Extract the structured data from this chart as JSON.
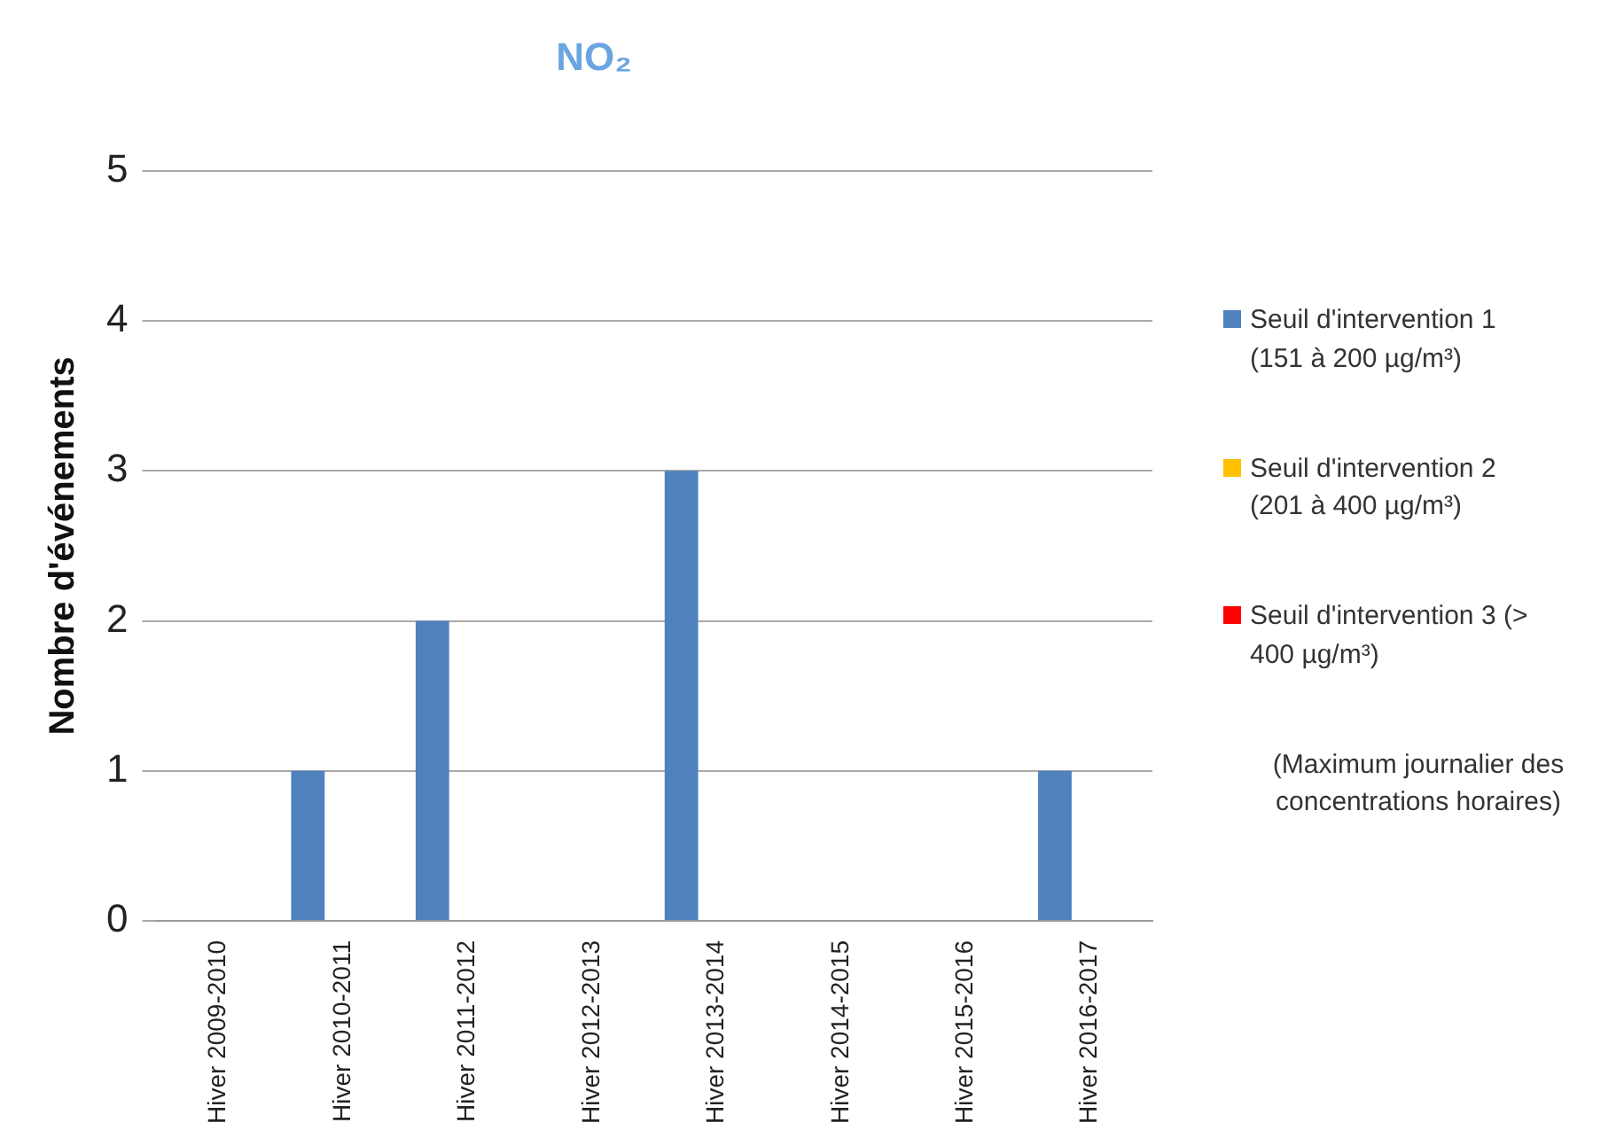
{
  "chart_data": {
    "type": "bar",
    "title": "NO₂",
    "ylabel": "Nombre d'événements",
    "categories": [
      "Hiver 2009-2010",
      "Hiver 2010-2011",
      "Hiver 2011-2012",
      "Hiver 2012-2013",
      "Hiver 2013-2014",
      "Hiver 2014-2015",
      "Hiver 2015-2016",
      "Hiver 2016-2017"
    ],
    "series": [
      {
        "name": "Seuil d'intervention 1 (151 à 200 µg/m³)",
        "color": "#4f81bd",
        "values": [
          0,
          1,
          2,
          0,
          3,
          0,
          0,
          1
        ]
      },
      {
        "name": "Seuil d'intervention 2 (201 à 400 µg/m³)",
        "color": "#ffc000",
        "values": [
          0,
          0,
          0,
          0,
          0,
          0,
          0,
          0
        ]
      },
      {
        "name": "Seuil d'intervention 3 (> 400 µg/m³)",
        "color": "#ff0000",
        "values": [
          0,
          0,
          0,
          0,
          0,
          0,
          0,
          0
        ]
      }
    ],
    "ylim": [
      0,
      5
    ],
    "yticks": [
      0,
      1,
      2,
      3,
      4,
      5
    ],
    "grid": "y",
    "legend": "right",
    "annotations": [
      "(Maximum journalier des concentrations horaires)"
    ]
  }
}
